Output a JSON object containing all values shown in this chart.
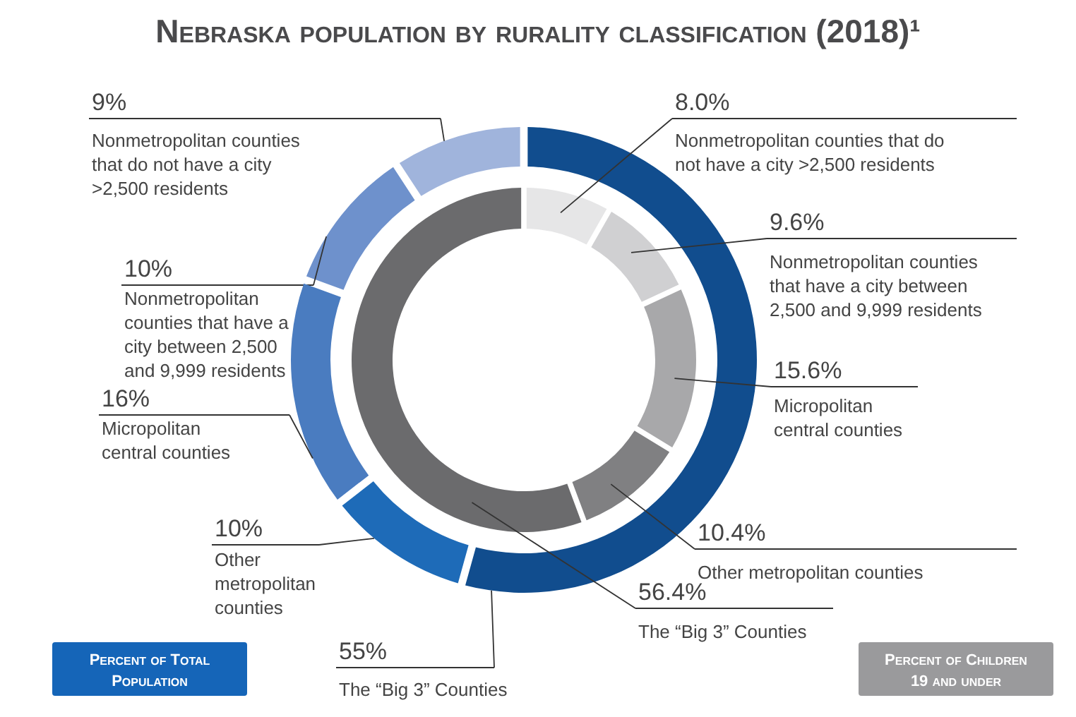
{
  "chart_data": {
    "type": "donut",
    "title": "Nebraska population by rurality classification (2018)¹",
    "legend": "bottom",
    "categories": [
      "Nonmetropolitan counties that do not have a city >2,500 residents",
      "Nonmetropolitan counties that have a city between 2,500 and 9,999 residents",
      "Micropolitan central counties",
      "Other metropolitan counties",
      "The “Big 3” Counties"
    ],
    "series": [
      {
        "name": "Percent of Total Population",
        "color": "#1565b8",
        "values": [
          9,
          10,
          16,
          10,
          55
        ],
        "value_labels": [
          "9%",
          "10%",
          "16%",
          "10%",
          "55%"
        ],
        "colors": [
          "#a0b4dc",
          "#6e91cc",
          "#4a7cc0",
          "#1e6bb8",
          "#114d8e"
        ]
      },
      {
        "name": "Percent of Children 19 and under",
        "color": "#9a9a9c",
        "values": [
          8.0,
          9.6,
          15.6,
          10.4,
          56.4
        ],
        "value_labels": [
          "8.0%",
          "9.6%",
          "15.6%",
          "10.4%",
          "56.4%"
        ],
        "colors": [
          "#e6e6e7",
          "#d0d0d2",
          "#a8a8aa",
          "#808082",
          "#6b6b6d"
        ]
      }
    ]
  }
}
